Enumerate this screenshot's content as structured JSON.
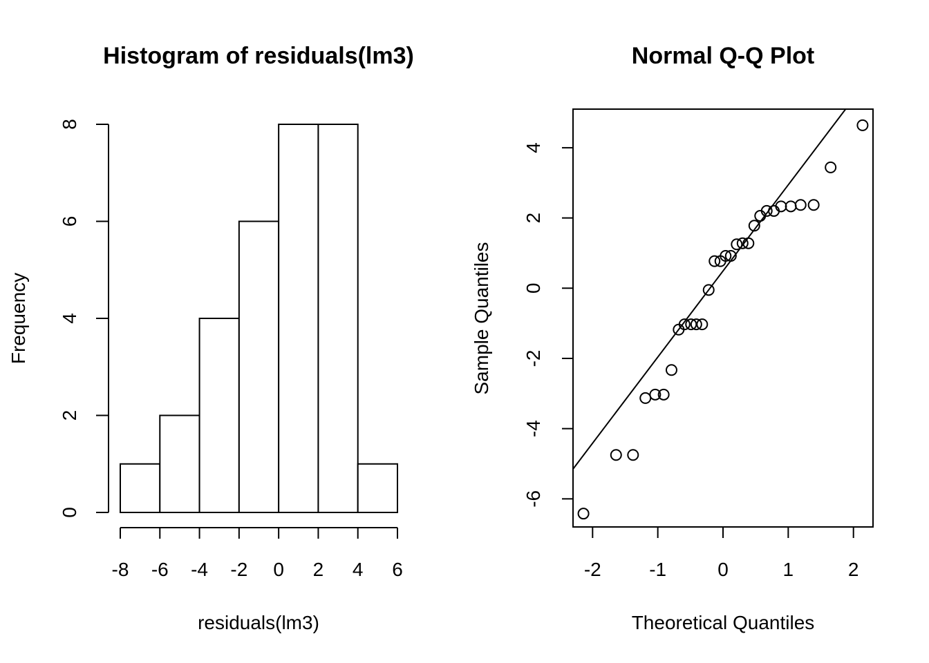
{
  "chart_data": [
    {
      "type": "bar",
      "subtype": "histogram",
      "title": "Histogram of residuals(lm3)",
      "xlabel": "residuals(lm3)",
      "ylabel": "Frequency",
      "bins": [
        [
          -8,
          -6
        ],
        [
          -6,
          -4
        ],
        [
          -4,
          -2
        ],
        [
          -2,
          0
        ],
        [
          0,
          2
        ],
        [
          2,
          4
        ],
        [
          4,
          6
        ]
      ],
      "values": [
        1,
        2,
        4,
        6,
        8,
        8,
        1
      ],
      "xlim": [
        -8,
        6
      ],
      "ylim": [
        0,
        8
      ],
      "xticks": [
        "-8",
        "-6",
        "-4",
        "-2",
        "0",
        "2",
        "4",
        "6"
      ],
      "yticks": [
        "0",
        "2",
        "4",
        "6",
        "8"
      ],
      "grid": false
    },
    {
      "type": "scatter",
      "title": "Normal Q-Q Plot",
      "xlabel": "Theoretical Quantiles",
      "ylabel": "Sample Quantiles",
      "xlim": [
        -2.3,
        2.3
      ],
      "ylim": [
        -6.8,
        5.1
      ],
      "xticks": [
        "-2",
        "-1",
        "0",
        "1",
        "2"
      ],
      "yticks": [
        "-6",
        "-4",
        "-2",
        "0",
        "2",
        "4"
      ],
      "points": [
        [
          -2.14,
          -6.42
        ],
        [
          -1.64,
          -4.75
        ],
        [
          -1.38,
          -4.75
        ],
        [
          -1.19,
          -3.13
        ],
        [
          -1.04,
          -3.03
        ],
        [
          -0.91,
          -3.03
        ],
        [
          -0.79,
          -2.33
        ],
        [
          -0.68,
          -1.18
        ],
        [
          -0.59,
          -1.03
        ],
        [
          -0.49,
          -1.03
        ],
        [
          -0.41,
          -1.03
        ],
        [
          -0.32,
          -1.03
        ],
        [
          -0.22,
          -0.05
        ],
        [
          -0.13,
          0.77
        ],
        [
          -0.04,
          0.77
        ],
        [
          0.04,
          0.92
        ],
        [
          0.12,
          0.92
        ],
        [
          0.21,
          1.25
        ],
        [
          0.3,
          1.28
        ],
        [
          0.39,
          1.28
        ],
        [
          0.48,
          1.78
        ],
        [
          0.57,
          2.06
        ],
        [
          0.67,
          2.2
        ],
        [
          0.78,
          2.2
        ],
        [
          0.89,
          2.33
        ],
        [
          1.04,
          2.33
        ],
        [
          1.19,
          2.37
        ],
        [
          1.39,
          2.37
        ],
        [
          1.65,
          3.44
        ],
        [
          2.14,
          4.64
        ]
      ],
      "reference_line": [
        [
          -2.3,
          -5.15
        ],
        [
          1.88,
          5.1
        ]
      ],
      "grid": false
    }
  ]
}
